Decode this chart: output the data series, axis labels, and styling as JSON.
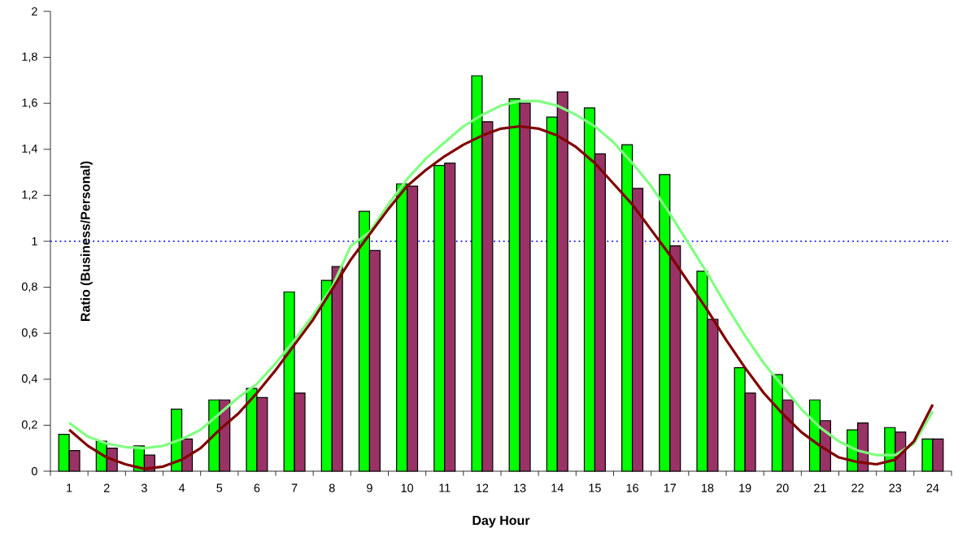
{
  "chart_data": {
    "type": "bar",
    "xlabel": "Day Hour",
    "ylabel": "Ratio (Business/Personal)",
    "x": [
      1,
      2,
      3,
      4,
      5,
      6,
      7,
      8,
      9,
      10,
      11,
      12,
      13,
      14,
      15,
      16,
      17,
      18,
      19,
      20,
      21,
      22,
      23,
      24
    ],
    "xlim": [
      0.5,
      24.5
    ],
    "xticks": [
      1,
      2,
      3,
      4,
      5,
      6,
      7,
      8,
      9,
      10,
      11,
      12,
      13,
      14,
      15,
      16,
      17,
      18,
      19,
      20,
      21,
      22,
      23,
      24
    ],
    "ylim": [
      0,
      2
    ],
    "yticks": [
      0,
      {
        "value": 0.2,
        "label": "0,2"
      },
      {
        "value": 0.4,
        "label": "0,4"
      },
      {
        "value": 0.6,
        "label": "0,6"
      },
      {
        "value": 0.8,
        "label": "0,8"
      },
      1,
      {
        "value": 1.2,
        "label": "1,2"
      },
      {
        "value": 1.4,
        "label": "1,4"
      },
      {
        "value": 1.6,
        "label": "1,6"
      },
      {
        "value": 1.8,
        "label": "1,8"
      },
      2
    ],
    "grid": false,
    "ref_lines": [
      {
        "axis": "y",
        "value": 1,
        "color": "#3333ff",
        "line_style": "dotted"
      }
    ],
    "series": [
      {
        "color": "#00ff00",
        "values": [
          0.16,
          0.13,
          0.11,
          0.27,
          0.31,
          0.36,
          0.78,
          0.83,
          1.13,
          1.25,
          1.33,
          1.72,
          1.62,
          1.54,
          1.58,
          1.42,
          1.29,
          0.87,
          0.45,
          0.42,
          0.31,
          0.18,
          0.19,
          0.14
        ]
      },
      {
        "color": "#993366",
        "values": [
          0.09,
          0.1,
          0.07,
          0.14,
          0.31,
          0.32,
          0.34,
          0.89,
          0.96,
          1.24,
          1.34,
          1.52,
          1.6,
          1.65,
          1.38,
          1.23,
          0.98,
          0.66,
          0.34,
          0.31,
          0.22,
          0.21,
          0.17,
          0.14
        ]
      },
      {
        "type": "line",
        "color": "#80ff80",
        "x": [
          1,
          1.5,
          2,
          2.5,
          3,
          3.5,
          4,
          4.5,
          5,
          5.5,
          6,
          6.5,
          7,
          7.5,
          8,
          8.5,
          9,
          9.5,
          10,
          10.5,
          11,
          11.5,
          12,
          12.5,
          13,
          13.5,
          14,
          14.5,
          15,
          15.5,
          16,
          16.5,
          17,
          17.5,
          18,
          18.5,
          19,
          19.5,
          20,
          20.5,
          21,
          21.5,
          22,
          22.5,
          23,
          23.5,
          24
        ],
        "values": [
          0.21,
          0.15,
          0.12,
          0.105,
          0.1,
          0.11,
          0.14,
          0.18,
          0.25,
          0.32,
          0.38,
          0.47,
          0.57,
          0.68,
          0.8,
          0.98,
          1.04,
          1.16,
          1.27,
          1.36,
          1.43,
          1.5,
          1.55,
          1.59,
          1.61,
          1.61,
          1.59,
          1.55,
          1.5,
          1.43,
          1.34,
          1.24,
          1.12,
          0.99,
          0.86,
          0.72,
          0.59,
          0.47,
          0.37,
          0.27,
          0.19,
          0.13,
          0.09,
          0.07,
          0.07,
          0.12,
          0.26
        ]
      },
      {
        "type": "line",
        "color": "#800000",
        "x": [
          1,
          1.5,
          2,
          2.5,
          3,
          3.5,
          4,
          4.5,
          5,
          5.5,
          6,
          6.5,
          7,
          7.5,
          8,
          8.5,
          9,
          9.5,
          10,
          10.5,
          11,
          11.5,
          12,
          12.5,
          13,
          13.5,
          14,
          14.5,
          15,
          15.5,
          16,
          16.5,
          17,
          17.5,
          18,
          18.5,
          19,
          19.5,
          20,
          20.5,
          21,
          21.5,
          22,
          22.5,
          23,
          23.5,
          24
        ],
        "values": [
          0.18,
          0.11,
          0.06,
          0.03,
          0.01,
          0.02,
          0.05,
          0.1,
          0.18,
          0.25,
          0.34,
          0.44,
          0.55,
          0.66,
          0.79,
          0.92,
          1.03,
          1.14,
          1.24,
          1.31,
          1.37,
          1.42,
          1.46,
          1.49,
          1.5,
          1.49,
          1.46,
          1.41,
          1.34,
          1.25,
          1.16,
          1.05,
          0.94,
          0.82,
          0.7,
          0.57,
          0.45,
          0.34,
          0.25,
          0.17,
          0.11,
          0.06,
          0.04,
          0.03,
          0.05,
          0.13,
          0.29
        ]
      }
    ]
  }
}
